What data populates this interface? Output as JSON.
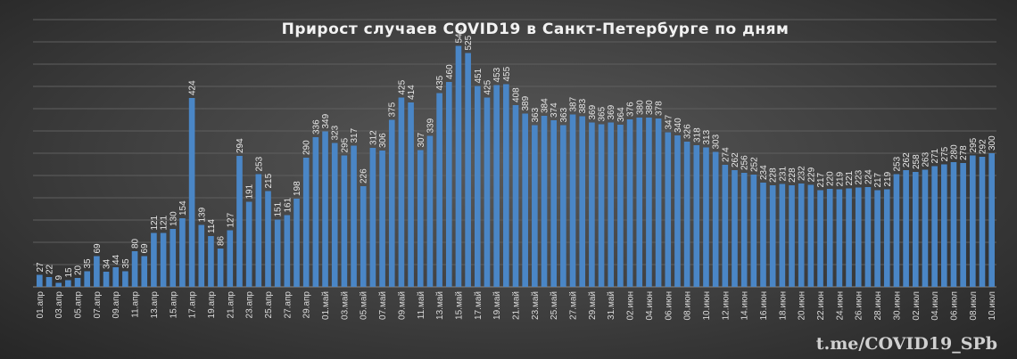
{
  "chart_data": {
    "type": "bar",
    "title": "Прирост  случаев  COVID19  в Санкт-Петербурге  по дням",
    "xlabel": "",
    "ylabel": "",
    "ylim": [
      0,
      600
    ],
    "grid": true,
    "bar_color": "#4a86c6",
    "categories": [
      "01.апр",
      "02.апр",
      "03.апр",
      "04.апр",
      "05.апр",
      "06.апр",
      "07.апр",
      "08.апр",
      "09.апр",
      "10.апр",
      "11.апр",
      "12.апр",
      "13.апр",
      "14.апр",
      "15.апр",
      "16.апр",
      "17.апр",
      "18.апр",
      "19.апр",
      "20.апр",
      "21.апр",
      "22.апр",
      "23.апр",
      "24.апр",
      "25.апр",
      "26.апр",
      "27.апр",
      "28.апр",
      "29.апр",
      "30.апр",
      "01.май",
      "02.май",
      "03.май",
      "04.май",
      "05.май",
      "06.май",
      "07.май",
      "08.май",
      "09.май",
      "10.май",
      "11.май",
      "12.май",
      "13.май",
      "14.май",
      "15.май",
      "16.май",
      "17.май",
      "18.май",
      "19.май",
      "20.май",
      "21.май",
      "22.май",
      "23.май",
      "24.май",
      "25.май",
      "26.май",
      "27.май",
      "28.май",
      "29.май",
      "30.май",
      "31.май",
      "01.июн",
      "02.июн",
      "03.июн",
      "04.июн",
      "05.июн",
      "06.июн",
      "07.июн",
      "08.июн",
      "09.июн",
      "10.июн",
      "11.июн",
      "12.июн",
      "13.июн",
      "14.июн",
      "15.июн",
      "16.июн",
      "17.июн",
      "18.июн",
      "19.июн",
      "20.июн",
      "21.июн",
      "22.июн",
      "23.июн",
      "24.июн",
      "25.июн",
      "26.июн",
      "27.июн",
      "28.июн",
      "29.июн",
      "30.июн",
      "01.июл",
      "02.июл",
      "03.июл",
      "04.июл",
      "05.июл",
      "06.июл",
      "07.июл",
      "08.июл",
      "09.июл",
      "10.июл"
    ],
    "values": [
      27,
      22,
      9,
      15,
      20,
      35,
      69,
      34,
      44,
      35,
      80,
      69,
      121,
      121,
      130,
      154,
      424,
      139,
      114,
      86,
      127,
      294,
      191,
      253,
      215,
      151,
      161,
      198,
      290,
      336,
      349,
      323,
      295,
      317,
      226,
      312,
      306,
      375,
      425,
      414,
      307,
      339,
      435,
      460,
      541,
      525,
      451,
      425,
      453,
      455,
      408,
      389,
      363,
      384,
      374,
      363,
      387,
      383,
      369,
      365,
      369,
      364,
      376,
      380,
      380,
      378,
      347,
      340,
      326,
      318,
      313,
      303,
      274,
      262,
      256,
      252,
      234,
      228,
      231,
      228,
      232,
      229,
      217,
      220,
      219,
      221,
      223,
      224,
      217,
      219,
      253,
      262,
      258,
      263,
      271,
      275,
      280,
      278,
      295,
      292,
      300
    ],
    "data_labels": true
  },
  "watermark": "t.me/COVID19_SPb"
}
